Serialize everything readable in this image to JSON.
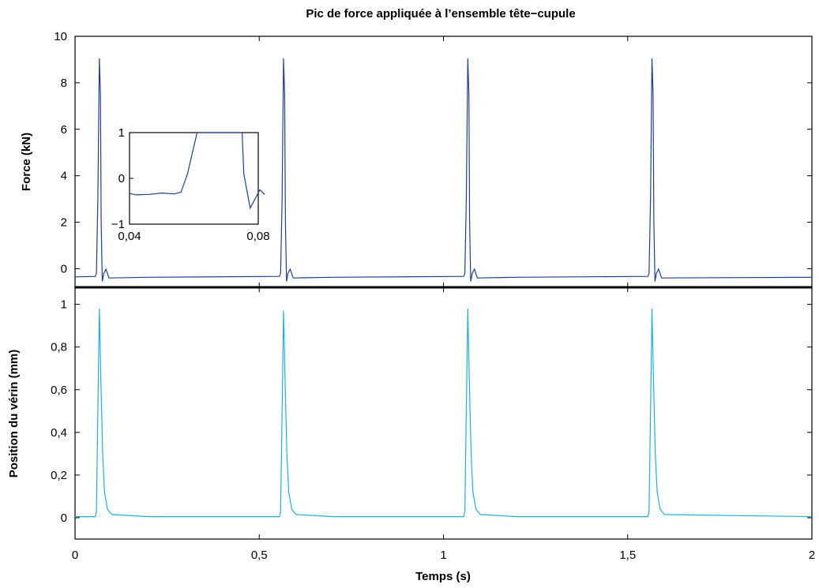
{
  "chart_data": [
    {
      "type": "line",
      "title": "Pic de force appliquée à l’ensemble tête−cupule",
      "xlabel": "",
      "ylabel": "Force (kN)",
      "xlim": [
        0,
        2
      ],
      "ylim": [
        -0.8,
        10
      ],
      "yticks": [
        0,
        2,
        4,
        6,
        8,
        10
      ],
      "ytick_labels": [
        "0",
        "2",
        "4",
        "6",
        "8",
        "10"
      ],
      "color": "#1f3f8c",
      "grid": false,
      "series": [
        {
          "points": [
            [
              0,
              -0.35
            ],
            [
              0.055,
              -0.33
            ],
            [
              0.058,
              -0.2
            ],
            [
              0.062,
              3
            ],
            [
              0.066,
              9.05
            ],
            [
              0.069,
              7.5
            ],
            [
              0.071,
              2
            ],
            [
              0.074,
              -0.55
            ],
            [
              0.078,
              -0.2
            ],
            [
              0.084,
              -0.02
            ],
            [
              0.092,
              -0.4
            ],
            [
              0.2,
              -0.37
            ],
            [
              0.555,
              -0.33
            ],
            [
              0.558,
              -0.2
            ],
            [
              0.562,
              3
            ],
            [
              0.566,
              9.05
            ],
            [
              0.569,
              7.5
            ],
            [
              0.571,
              2
            ],
            [
              0.574,
              -0.55
            ],
            [
              0.578,
              -0.2
            ],
            [
              0.584,
              -0.02
            ],
            [
              0.592,
              -0.4
            ],
            [
              0.7,
              -0.37
            ],
            [
              1.055,
              -0.33
            ],
            [
              1.058,
              -0.2
            ],
            [
              1.062,
              3
            ],
            [
              1.066,
              9.05
            ],
            [
              1.069,
              7.5
            ],
            [
              1.071,
              2
            ],
            [
              1.074,
              -0.55
            ],
            [
              1.078,
              -0.2
            ],
            [
              1.084,
              -0.02
            ],
            [
              1.092,
              -0.4
            ],
            [
              1.2,
              -0.37
            ],
            [
              1.555,
              -0.33
            ],
            [
              1.558,
              -0.2
            ],
            [
              1.562,
              3
            ],
            [
              1.566,
              9.05
            ],
            [
              1.569,
              7.5
            ],
            [
              1.571,
              2
            ],
            [
              1.574,
              -0.55
            ],
            [
              1.578,
              -0.2
            ],
            [
              1.584,
              -0.02
            ],
            [
              1.592,
              -0.4
            ],
            [
              2,
              -0.37
            ]
          ]
        }
      ],
      "inset": {
        "xlim": [
          0.04,
          0.08
        ],
        "ylim": [
          -1,
          1
        ],
        "xticks": [
          0.04,
          0.08
        ],
        "xtick_labels": [
          "0,04",
          "0,08"
        ],
        "yticks": [
          -1,
          0,
          1
        ],
        "ytick_labels": [
          "−1",
          "0",
          "1"
        ],
        "points": [
          [
            0.04,
            -0.33
          ],
          [
            0.042,
            -0.36
          ],
          [
            0.046,
            -0.35
          ],
          [
            0.05,
            -0.32
          ],
          [
            0.054,
            -0.34
          ],
          [
            0.056,
            -0.3
          ],
          [
            0.058,
            0.1
          ],
          [
            0.06,
            0.7
          ],
          [
            0.061,
            1
          ],
          [
            0.075,
            1
          ],
          [
            0.0755,
            0.1
          ],
          [
            0.0775,
            -0.65
          ],
          [
            0.079,
            -0.45
          ],
          [
            0.0805,
            -0.25
          ],
          [
            0.082,
            -0.35
          ]
        ]
      }
    },
    {
      "type": "line",
      "title": "",
      "xlabel": "Temps (s)",
      "ylabel": "Position du vérin (mm)",
      "xlim": [
        0,
        2
      ],
      "ylim": [
        -0.1,
        1.08
      ],
      "xticks": [
        0,
        0.5,
        1,
        1.5,
        2
      ],
      "xtick_labels": [
        "0",
        "0,5",
        "1",
        "1,5",
        "2"
      ],
      "yticks": [
        0,
        0.2,
        0.4,
        0.6,
        0.8,
        1
      ],
      "ytick_labels": [
        "0",
        "0,2",
        "0,4",
        "0,6",
        "0,8",
        "1"
      ],
      "color": "#1fb0e0",
      "grid": false,
      "series": [
        {
          "points": [
            [
              0,
              0.005
            ],
            [
              0.055,
              0.005
            ],
            [
              0.058,
              0.03
            ],
            [
              0.062,
              0.5
            ],
            [
              0.066,
              0.98
            ],
            [
              0.07,
              0.65
            ],
            [
              0.075,
              0.3
            ],
            [
              0.08,
              0.12
            ],
            [
              0.088,
              0.04
            ],
            [
              0.1,
              0.015
            ],
            [
              0.2,
              0.005
            ],
            [
              0.555,
              0.005
            ],
            [
              0.558,
              0.03
            ],
            [
              0.562,
              0.5
            ],
            [
              0.566,
              0.97
            ],
            [
              0.57,
              0.65
            ],
            [
              0.575,
              0.3
            ],
            [
              0.58,
              0.12
            ],
            [
              0.588,
              0.04
            ],
            [
              0.6,
              0.015
            ],
            [
              0.7,
              0.005
            ],
            [
              1.055,
              0.005
            ],
            [
              1.058,
              0.03
            ],
            [
              1.062,
              0.5
            ],
            [
              1.066,
              0.98
            ],
            [
              1.07,
              0.65
            ],
            [
              1.075,
              0.3
            ],
            [
              1.08,
              0.12
            ],
            [
              1.088,
              0.04
            ],
            [
              1.1,
              0.015
            ],
            [
              1.2,
              0.005
            ],
            [
              1.555,
              0.005
            ],
            [
              1.558,
              0.03
            ],
            [
              1.562,
              0.5
            ],
            [
              1.566,
              0.98
            ],
            [
              1.57,
              0.65
            ],
            [
              1.575,
              0.3
            ],
            [
              1.58,
              0.12
            ],
            [
              1.588,
              0.04
            ],
            [
              1.6,
              0.015
            ],
            [
              2,
              0.005
            ]
          ]
        }
      ]
    }
  ]
}
